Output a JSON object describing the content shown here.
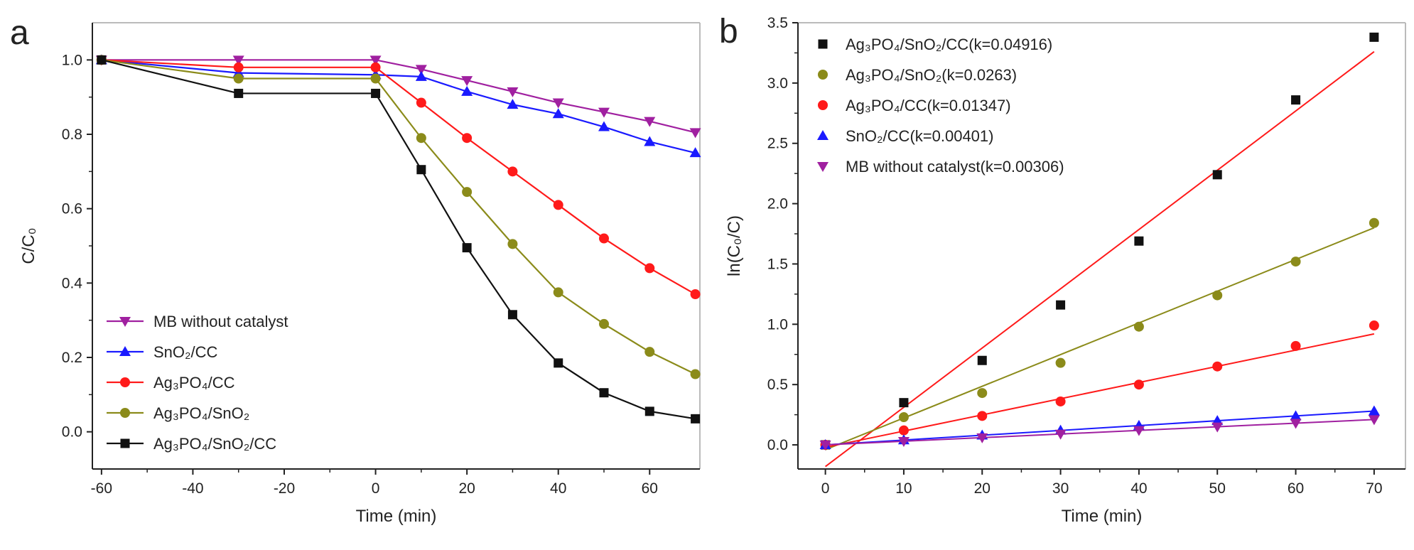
{
  "chart_data": [
    {
      "panel": "a",
      "type": "line",
      "xlabel": "Time (min)",
      "ylabel": "C/C₀",
      "xlim": [
        -62,
        71
      ],
      "ylim": [
        -0.1,
        1.1
      ],
      "xticks": [
        -60,
        -40,
        -20,
        0,
        20,
        40,
        60
      ],
      "xtick_labels": [
        "-60",
        "-40",
        "-20",
        "0",
        "20",
        "40",
        "60"
      ],
      "yticks": [
        0.0,
        0.2,
        0.4,
        0.6,
        0.8,
        1.0
      ],
      "ytick_labels": [
        "0.0",
        "0.2",
        "0.4",
        "0.6",
        "0.8",
        "1.0"
      ],
      "legend_position": "bottom-left",
      "series": [
        {
          "name": "MB without catalyst",
          "color": "#a020a0",
          "marker": "triangle-down",
          "x": [
            -60,
            -30,
            0,
            10,
            20,
            30,
            40,
            50,
            60,
            70
          ],
          "y": [
            1.0,
            1.0,
            1.0,
            0.975,
            0.945,
            0.915,
            0.885,
            0.86,
            0.835,
            0.805
          ]
        },
        {
          "name": "SnO₂/CC",
          "color": "#1a1aff",
          "marker": "triangle-up",
          "x": [
            -60,
            -30,
            0,
            10,
            20,
            30,
            40,
            50,
            60,
            70
          ],
          "y": [
            1.0,
            0.965,
            0.96,
            0.955,
            0.915,
            0.88,
            0.855,
            0.82,
            0.78,
            0.75
          ]
        },
        {
          "name": "Ag₃PO₄/CC",
          "color": "#ff1a1a",
          "marker": "circle",
          "x": [
            -60,
            -30,
            0,
            10,
            20,
            30,
            40,
            50,
            60,
            70
          ],
          "y": [
            1.0,
            0.98,
            0.98,
            0.885,
            0.79,
            0.7,
            0.61,
            0.52,
            0.44,
            0.37
          ]
        },
        {
          "name": "Ag₃PO₄/SnO₂",
          "color": "#8b8b1a",
          "marker": "circle",
          "x": [
            -60,
            -30,
            0,
            10,
            20,
            30,
            40,
            50,
            60,
            70
          ],
          "y": [
            1.0,
            0.95,
            0.95,
            0.79,
            0.645,
            0.505,
            0.375,
            0.29,
            0.215,
            0.155
          ]
        },
        {
          "name": "Ag₃PO₄/SnO₂/CC",
          "color": "#111111",
          "marker": "square",
          "x": [
            -60,
            -30,
            0,
            10,
            20,
            30,
            40,
            50,
            60,
            70
          ],
          "y": [
            1.0,
            0.91,
            0.91,
            0.705,
            0.495,
            0.315,
            0.185,
            0.105,
            0.055,
            0.035
          ]
        }
      ]
    },
    {
      "panel": "b",
      "type": "scatter",
      "xlabel": "Time (min)",
      "ylabel": "ln(C₀/C)",
      "xlim": [
        -3.5,
        74
      ],
      "ylim": [
        -0.2,
        3.5
      ],
      "xticks": [
        0,
        10,
        20,
        30,
        40,
        50,
        60,
        70
      ],
      "xtick_labels": [
        "0",
        "10",
        "20",
        "30",
        "40",
        "50",
        "60",
        "70"
      ],
      "yticks": [
        0.0,
        0.5,
        1.0,
        1.5,
        2.0,
        2.5,
        3.0,
        3.5
      ],
      "ytick_labels": [
        "0.0",
        "0.5",
        "1.0",
        "1.5",
        "2.0",
        "2.5",
        "3.0",
        "3.5"
      ],
      "legend_position": "top-left",
      "series": [
        {
          "name": "Ag₃PO₄/SnO₂/CC(k=0.04916)",
          "color": "#111111",
          "fit_color": "#ff1a1a",
          "marker": "square",
          "x": [
            0,
            10,
            20,
            30,
            40,
            50,
            60,
            70
          ],
          "y": [
            0.0,
            0.35,
            0.7,
            1.16,
            1.69,
            2.24,
            2.86,
            3.38
          ],
          "fit": [
            -0.18,
            3.26
          ]
        },
        {
          "name": "Ag₃PO₄/SnO₂(k=0.0263)",
          "color": "#8b8b1a",
          "fit_color": "#8b8b1a",
          "marker": "circle",
          "x": [
            0,
            10,
            20,
            30,
            40,
            50,
            60,
            70
          ],
          "y": [
            0.0,
            0.23,
            0.43,
            0.68,
            0.98,
            1.24,
            1.52,
            1.84
          ],
          "fit": [
            -0.04,
            1.8
          ]
        },
        {
          "name": "Ag₃PO₄/CC(k=0.01347)",
          "color": "#ff1a1a",
          "fit_color": "#ff1a1a",
          "marker": "circle",
          "x": [
            0,
            10,
            20,
            30,
            40,
            50,
            60,
            70
          ],
          "y": [
            0.0,
            0.12,
            0.24,
            0.36,
            0.5,
            0.65,
            0.82,
            0.99
          ],
          "fit": [
            -0.02,
            0.92
          ]
        },
        {
          "name": "SnO₂/CC(k=0.00401)",
          "color": "#1a1aff",
          "fit_color": "#1a1aff",
          "marker": "triangle-up",
          "x": [
            0,
            10,
            20,
            30,
            40,
            50,
            60,
            70
          ],
          "y": [
            0.0,
            0.04,
            0.08,
            0.12,
            0.16,
            0.2,
            0.24,
            0.28
          ],
          "fit": [
            0.0,
            0.28
          ]
        },
        {
          "name": "MB without catalyst(k=0.00306)",
          "color": "#a020a0",
          "fit_color": "#a020a0",
          "marker": "triangle-down",
          "x": [
            0,
            10,
            20,
            30,
            40,
            50,
            60,
            70
          ],
          "y": [
            0.0,
            0.03,
            0.06,
            0.09,
            0.12,
            0.15,
            0.18,
            0.21
          ],
          "fit": [
            0.0,
            0.21
          ]
        }
      ]
    }
  ]
}
